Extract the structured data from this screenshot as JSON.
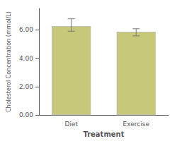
{
  "chart_data": {
    "type": "bar",
    "xlabel": "Treatment",
    "ylabel": "Cholesterol Concentration (mmol/L)",
    "categories": [
      "Diet",
      "Exercise"
    ],
    "values": [
      6.25,
      5.85
    ],
    "error_upper": [
      0.52,
      0.22
    ],
    "error_lower": [
      0.35,
      0.28
    ],
    "color": "#c8c87a",
    "ylim": [
      0.0,
      7.5
    ],
    "yticks": [
      {
        "value": 0.0,
        "label": "0.00"
      },
      {
        "value": 2.0,
        "label": "2.00"
      },
      {
        "value": 4.0,
        "label": "4.00"
      },
      {
        "value": 6.0,
        "label": "6.00"
      }
    ],
    "grid": false
  }
}
